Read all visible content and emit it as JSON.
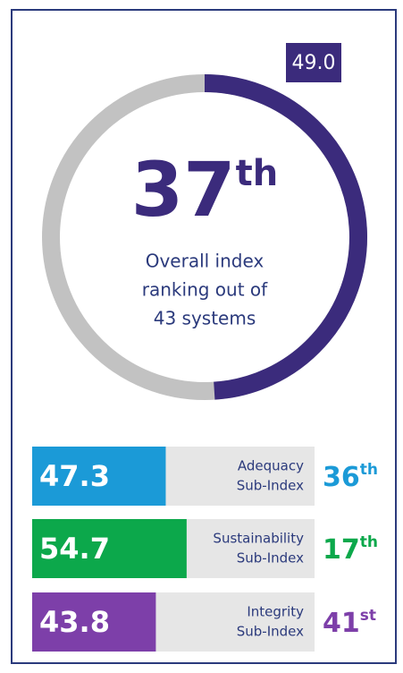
{
  "chart_data": [
    {
      "type": "gauge",
      "values": [
        49.0
      ],
      "value_labels": [
        "49.0"
      ],
      "ylim": [
        0,
        100
      ],
      "color": "#3b2b7c",
      "track_color": "#c2c2c2",
      "rank": "37",
      "rank_suffix": "th",
      "caption": [
        "Overall index",
        "ranking out of",
        "43 systems"
      ]
    },
    {
      "type": "bar",
      "orientation": "horizontal",
      "xlim": [
        0,
        100
      ],
      "categories": [
        [
          "Adequacy",
          "Sub-Index"
        ],
        [
          "Sustainability",
          "Sub-Index"
        ],
        [
          "Integrity",
          "Sub-Index"
        ]
      ],
      "values": [
        47.3,
        54.7,
        43.8
      ],
      "colors": [
        "#1b9ad7",
        "#0ca84b",
        "#7d3fa9"
      ],
      "track_color": "#e6e6e6",
      "ranks": [
        "36",
        "17",
        "41"
      ],
      "rank_suffixes": [
        "th",
        "th",
        "st"
      ]
    }
  ]
}
